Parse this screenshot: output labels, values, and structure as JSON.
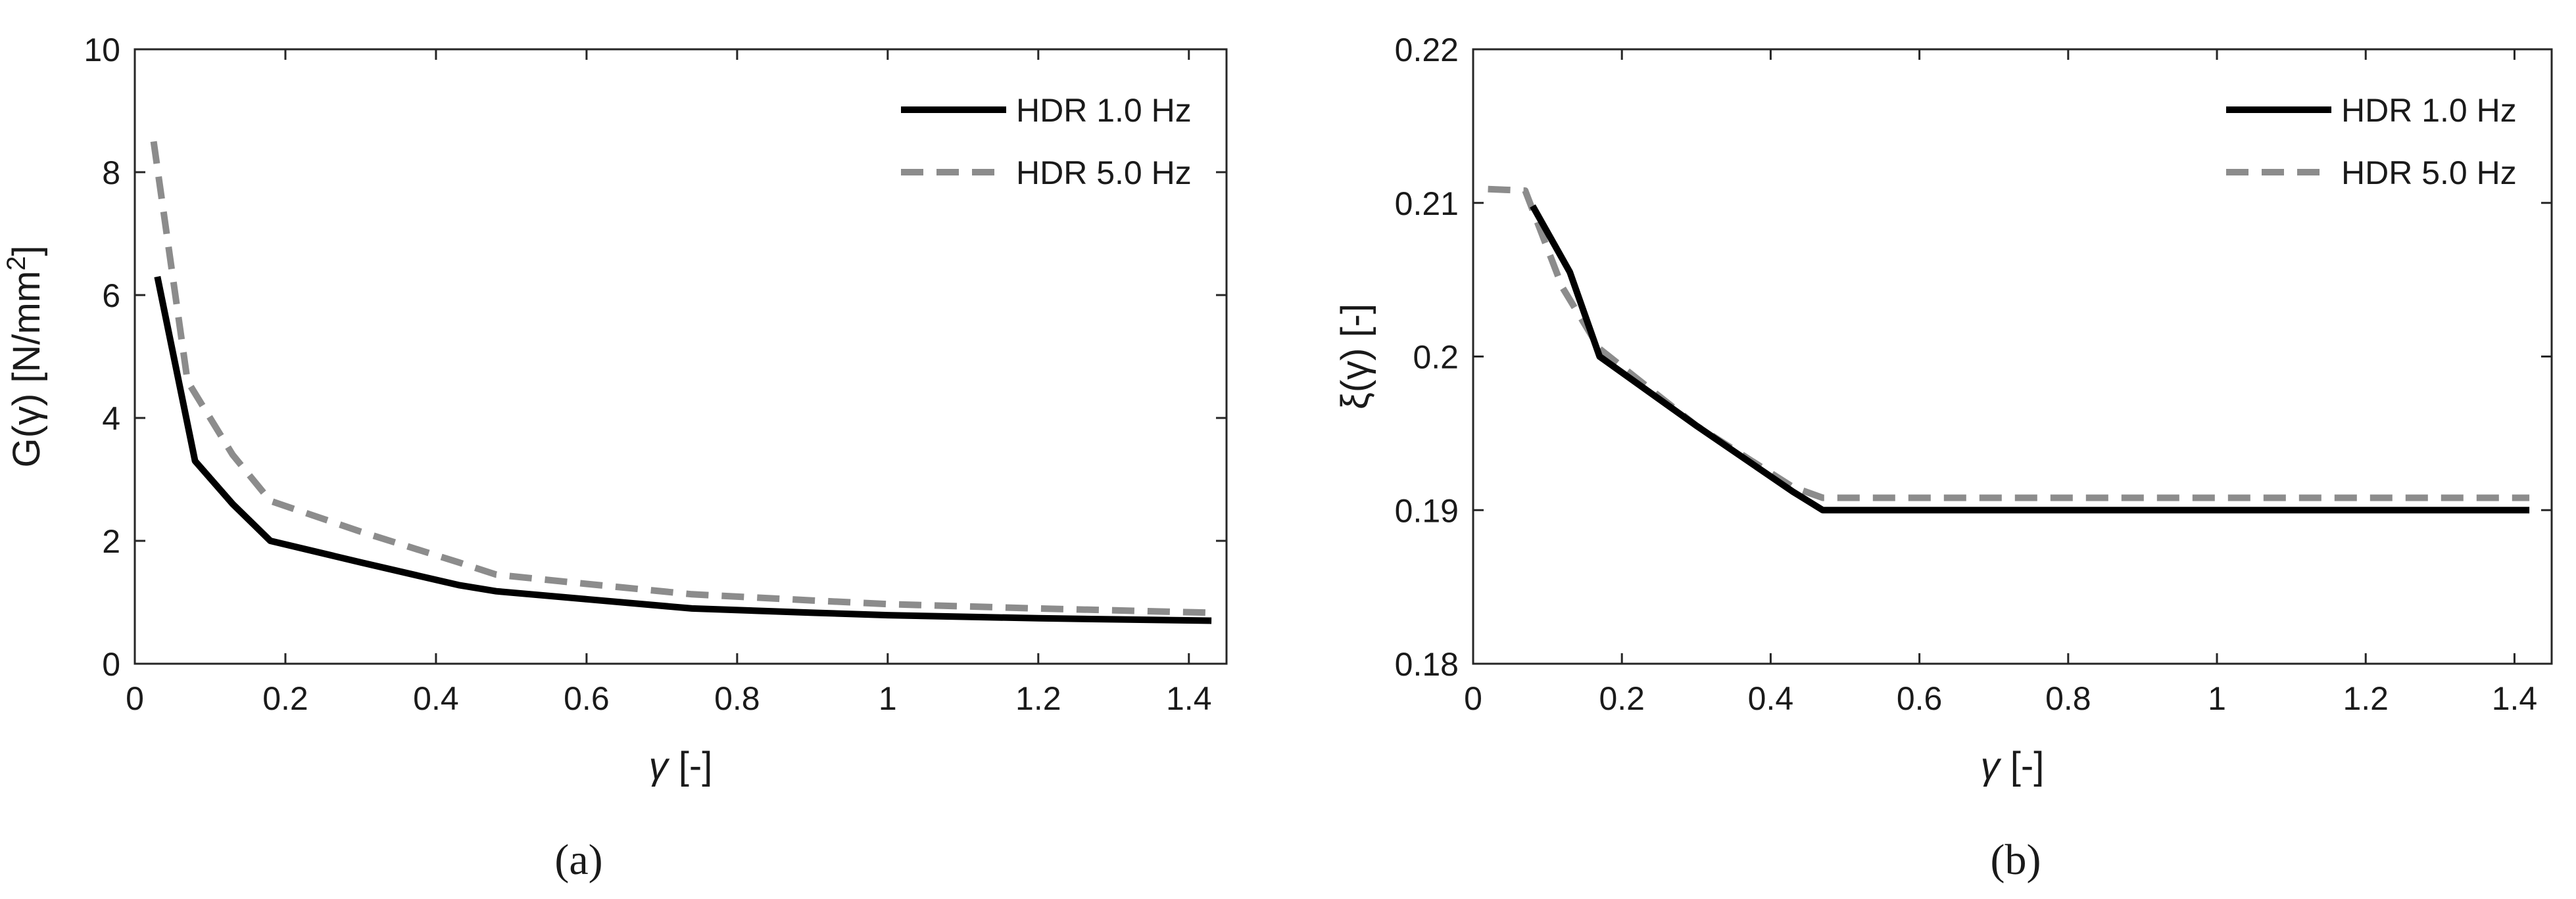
{
  "chart_data": [
    {
      "type": "line",
      "caption": "(a)",
      "xlabel_symbol": "γ",
      "xlabel_unit": " [-]",
      "ylabel_prefix": "G(γ) [N/mm",
      "ylabel_sup": "2",
      "ylabel_suffix": "]",
      "xlim": [
        0,
        1.45
      ],
      "ylim": [
        0,
        10
      ],
      "xticks": [
        0,
        0.2,
        0.4,
        0.6,
        0.8,
        1.0,
        1.2,
        1.4
      ],
      "xtick_labels": [
        "0",
        "0.2",
        "0.4",
        "0.6",
        "0.8",
        "1",
        "1.2",
        "1.4"
      ],
      "yticks": [
        0,
        2,
        4,
        6,
        8,
        10
      ],
      "ytick_labels": [
        "0",
        "2",
        "4",
        "6",
        "8",
        "10"
      ],
      "legend_position": "top-right",
      "series": [
        {
          "name": "HDR 1.0 Hz",
          "color": "#000000",
          "dash": "solid",
          "x": [
            0.03,
            0.08,
            0.13,
            0.18,
            0.3,
            0.43,
            0.48,
            0.6,
            0.74,
            0.9,
            1.0,
            1.2,
            1.43
          ],
          "y": [
            6.3,
            3.3,
            2.6,
            2.0,
            1.65,
            1.28,
            1.18,
            1.05,
            0.9,
            0.83,
            0.79,
            0.74,
            0.7
          ]
        },
        {
          "name": "HDR 5.0 Hz",
          "color": "#8c8c8c",
          "dash": "dashed",
          "x": [
            0.025,
            0.07,
            0.13,
            0.18,
            0.3,
            0.43,
            0.48,
            0.6,
            0.74,
            0.9,
            1.0,
            1.2,
            1.43
          ],
          "y": [
            8.5,
            4.6,
            3.4,
            2.65,
            2.15,
            1.65,
            1.45,
            1.3,
            1.13,
            1.03,
            0.97,
            0.9,
            0.83
          ]
        }
      ]
    },
    {
      "type": "line",
      "caption": "(b)",
      "xlabel_symbol": "γ",
      "xlabel_unit": " [-]",
      "ylabel_prefix": "ξ(γ) [-]",
      "ylabel_sup": "",
      "ylabel_suffix": "",
      "xlim": [
        0,
        1.45
      ],
      "ylim": [
        0.18,
        0.22
      ],
      "xticks": [
        0,
        0.2,
        0.4,
        0.6,
        0.8,
        1.0,
        1.2,
        1.4
      ],
      "xtick_labels": [
        "0",
        "0.2",
        "0.4",
        "0.6",
        "0.8",
        "1",
        "1.2",
        "1.4"
      ],
      "yticks": [
        0.18,
        0.19,
        0.2,
        0.21,
        0.22
      ],
      "ytick_labels": [
        "0.18",
        "0.19",
        "0.2",
        "0.21",
        "0.22"
      ],
      "legend_position": "top-right",
      "series": [
        {
          "name": "HDR 1.0 Hz",
          "color": "#000000",
          "dash": "solid",
          "x": [
            0.08,
            0.13,
            0.17,
            0.3,
            0.43,
            0.47,
            1.42
          ],
          "y": [
            0.2098,
            0.2055,
            0.2,
            0.1955,
            0.1912,
            0.19,
            0.19
          ]
        },
        {
          "name": "HDR 5.0 Hz",
          "color": "#8c8c8c",
          "dash": "dashed",
          "x": [
            0.02,
            0.07,
            0.12,
            0.17,
            0.3,
            0.43,
            0.47,
            1.42
          ],
          "y": [
            0.2109,
            0.2108,
            0.2045,
            0.2005,
            0.1955,
            0.1915,
            0.1908,
            0.1908
          ]
        }
      ]
    }
  ]
}
